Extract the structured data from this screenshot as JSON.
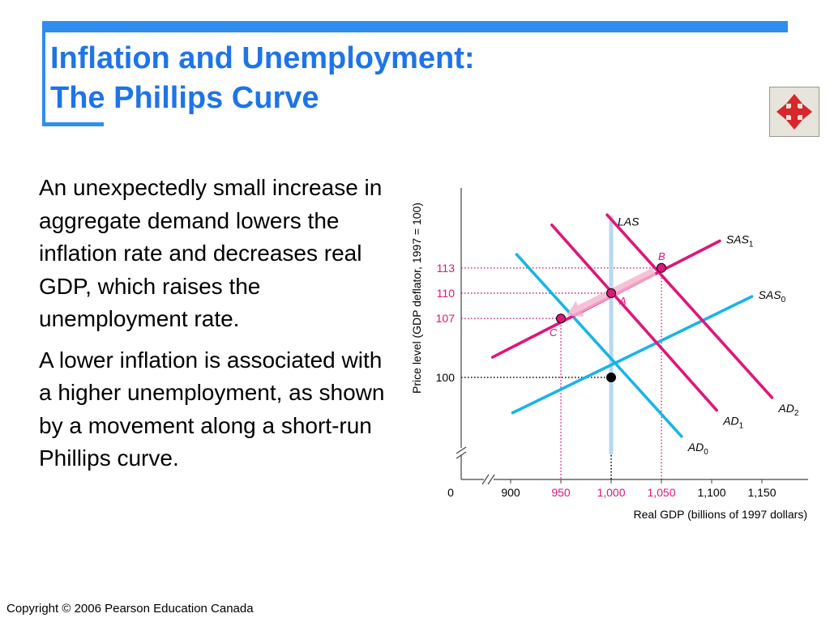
{
  "slide": {
    "title_line1": "Inflation and Unemployment:",
    "title_line2": "The Phillips Curve",
    "paragraph1": "An unexpectedly small increase in aggregate demand lowers the inflation rate and decreases real GDP, which raises the unemployment rate.",
    "paragraph2": "A lower inflation is associated with a higher unemployment, as shown by a movement along a short-run Phillips curve.",
    "footer": "Copyright © 2006 Pearson Education Canada",
    "nav_icon": "four-way-arrows-icon"
  },
  "colors": {
    "title_blue": "#1e74e8",
    "accent_pink": "#e0157a",
    "curve_cyan": "#18b4e8",
    "las_blue": "#b8d8f0",
    "nav_red": "#d8262a"
  },
  "chart_data": {
    "type": "line",
    "xlabel": "Real GDP (billions of 1997 dollars)",
    "ylabel": "Price level (GDP deflator, 1997 = 100)",
    "x_ticks": [
      {
        "value": 0,
        "label": "0"
      },
      {
        "value": 900,
        "label": "900"
      },
      {
        "value": 950,
        "label": "950"
      },
      {
        "value": 1000,
        "label": "1,000"
      },
      {
        "value": 1050,
        "label": "1,050"
      },
      {
        "value": 1100,
        "label": "1,100"
      },
      {
        "value": 1150,
        "label": "1,150"
      }
    ],
    "y_ticks": [
      {
        "value": 100,
        "label": "100"
      },
      {
        "value": 107,
        "label": "107"
      },
      {
        "value": 110,
        "label": "110"
      },
      {
        "value": 113,
        "label": "113"
      }
    ],
    "xlim": [
      880,
      1165
    ],
    "ylim": [
      90,
      120
    ],
    "axis_breaks": true,
    "series": [
      {
        "name": "LAS",
        "label": "LAS",
        "sub": "",
        "color": "#b8d8f0",
        "points": [
          [
            1000,
            119
          ],
          [
            1000,
            91
          ]
        ]
      },
      {
        "name": "AD0",
        "label": "AD",
        "sub": "0",
        "color": "#18b4e8",
        "points": [
          [
            906,
            114.6
          ],
          [
            1070,
            93
          ]
        ]
      },
      {
        "name": "SAS0",
        "label": "SAS",
        "sub": "0",
        "color": "#18b4e8",
        "points": [
          [
            902,
            95.8
          ],
          [
            1140,
            109.6
          ]
        ]
      },
      {
        "name": "SAS1",
        "label": "SAS",
        "sub": "1",
        "color": "#e0157a",
        "points": [
          [
            882,
            102.4
          ],
          [
            1108,
            116.2
          ]
        ]
      },
      {
        "name": "AD1",
        "label": "AD",
        "sub": "1",
        "color": "#e0157a",
        "points": [
          [
            941,
            118.1
          ],
          [
            1105,
            96.1
          ]
        ]
      },
      {
        "name": "AD2",
        "label": "AD",
        "sub": "2",
        "color": "#e0157a",
        "points": [
          [
            996,
            119.3
          ],
          [
            1160,
            97.6
          ]
        ]
      }
    ],
    "points": [
      {
        "name": "A",
        "x": 1000,
        "y": 110,
        "color": "#e0157a"
      },
      {
        "name": "B",
        "x": 1050,
        "y": 113,
        "color": "#e0157a"
      },
      {
        "name": "C",
        "x": 950,
        "y": 107,
        "color": "#e0157a"
      },
      {
        "name": "",
        "x": 1000,
        "y": 100,
        "color": "#000000"
      }
    ],
    "guides": [
      {
        "x": 1050,
        "y": 113,
        "color": "#e0157a"
      },
      {
        "x": 1000,
        "y": 110,
        "color": "#e0157a"
      },
      {
        "x": 950,
        "y": 107,
        "color": "#e0157a"
      },
      {
        "x": 1000,
        "y": 100,
        "color": "#000000"
      }
    ],
    "movement": {
      "from": "B",
      "via": "A",
      "to": "C"
    }
  }
}
